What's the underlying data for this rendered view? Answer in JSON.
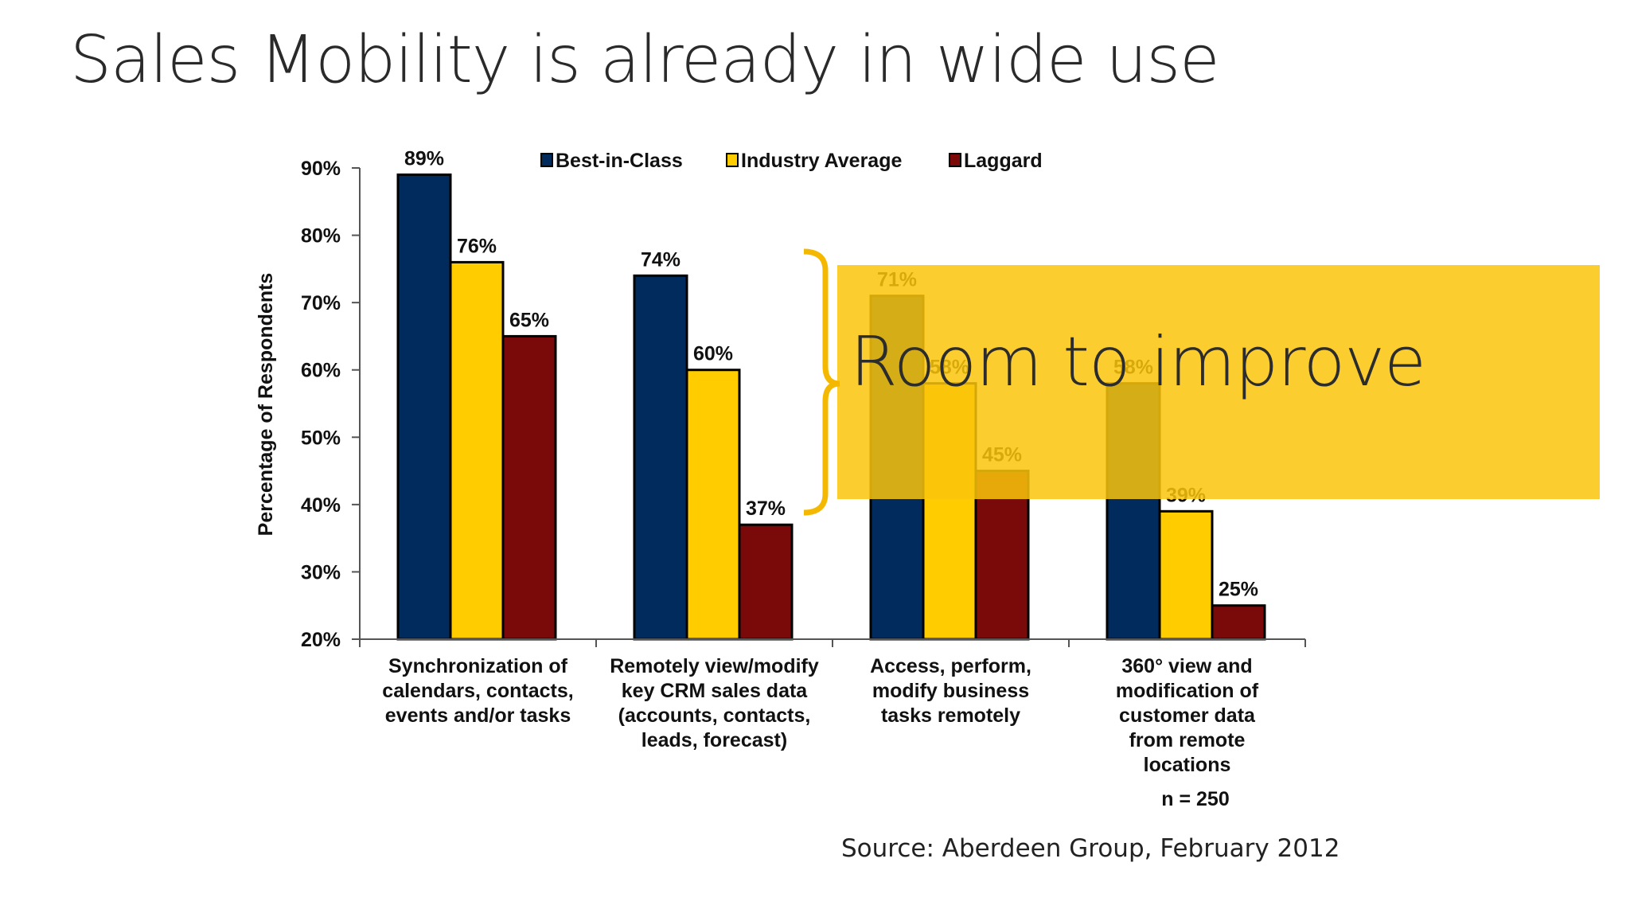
{
  "slide": {
    "title": "Sales Mobility is already in wide use",
    "callout": "Room to improve",
    "source": "Source: Aberdeen Group, February 2012"
  },
  "chart_data": {
    "type": "bar",
    "ylabel": "Percentage of Respondents",
    "ylim": [
      20,
      90
    ],
    "yticks": [
      "20%",
      "30%",
      "40%",
      "50%",
      "60%",
      "70%",
      "80%",
      "90%"
    ],
    "categories": [
      [
        "Synchronization of",
        "calendars, contacts,",
        "events and/or tasks"
      ],
      [
        "Remotely view/modify",
        "key CRM sales data",
        "(accounts, contacts,",
        "leads, forecast)"
      ],
      [
        "Access, perform,",
        "modify business",
        "tasks remotely"
      ],
      [
        "360° view and",
        "modification of",
        "customer data",
        "from remote",
        "locations"
      ]
    ],
    "series": [
      {
        "name": "Best-in-Class",
        "color": "#002b5c",
        "values": [
          89,
          74,
          71,
          58
        ],
        "labels": [
          "89%",
          "74%",
          "71%",
          "58%"
        ]
      },
      {
        "name": "Industry Average",
        "color": "#ffcc00",
        "values": [
          76,
          60,
          58,
          39
        ],
        "labels": [
          "76%",
          "60%",
          "58%",
          "39%"
        ]
      },
      {
        "name": "Laggard",
        "color": "#7a0a0a",
        "values": [
          65,
          37,
          45,
          25
        ],
        "labels": [
          "65%",
          "37%",
          "45%",
          "25%"
        ]
      }
    ],
    "annotation": "n = 250",
    "legend_position": "top",
    "grid": false
  }
}
